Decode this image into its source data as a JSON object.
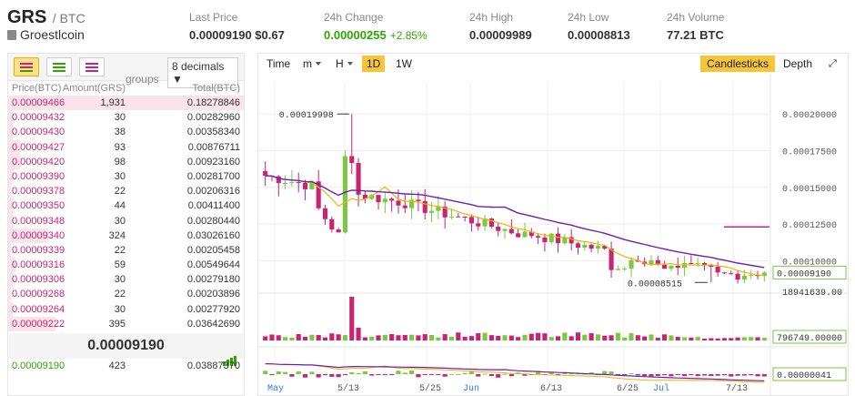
{
  "header": {
    "symbol": "GRS",
    "quote": "/ BTC",
    "coin_name": "Groestlcoin",
    "stats": [
      {
        "label": "Last Price",
        "value": "0.00009190 $0.67"
      },
      {
        "label": "24h Change",
        "value": "0.00000255",
        "pct": "+2.85%"
      },
      {
        "label": "24h High",
        "value": "0.00009989"
      },
      {
        "label": "24h Low",
        "value": "0.00008813"
      },
      {
        "label": "24h Volume",
        "value": "77.21 BTC"
      }
    ]
  },
  "orderbook": {
    "groups_label": "groups",
    "decimals": "8 decimals ▼",
    "columns": {
      "price": "Price(BTC)",
      "amount": "Amount(GRS)",
      "total": "Total(BTC)"
    },
    "asks": [
      {
        "price": "0.00009466",
        "amount": "1,931",
        "total": "0.18278846",
        "depth": 1.0
      },
      {
        "price": "0.00009432",
        "amount": "30",
        "total": "0.00282960",
        "depth": 0.02
      },
      {
        "price": "0.00009430",
        "amount": "38",
        "total": "0.00358340",
        "depth": 0.02
      },
      {
        "price": "0.00009427",
        "amount": "93",
        "total": "0.00876711",
        "depth": 0.05
      },
      {
        "price": "0.00009420",
        "amount": "98",
        "total": "0.00923160",
        "depth": 0.05
      },
      {
        "price": "0.00009390",
        "amount": "30",
        "total": "0.00281700",
        "depth": 0.02
      },
      {
        "price": "0.00009378",
        "amount": "22",
        "total": "0.00206316",
        "depth": 0.01
      },
      {
        "price": "0.00009350",
        "amount": "44",
        "total": "0.00411400",
        "depth": 0.02
      },
      {
        "price": "0.00009348",
        "amount": "30",
        "total": "0.00280440",
        "depth": 0.02
      },
      {
        "price": "0.00009340",
        "amount": "324",
        "total": "0.03026160",
        "depth": 0.17
      },
      {
        "price": "0.00009339",
        "amount": "22",
        "total": "0.00205458",
        "depth": 0.01
      },
      {
        "price": "0.00009316",
        "amount": "59",
        "total": "0.00549644",
        "depth": 0.03
      },
      {
        "price": "0.00009306",
        "amount": "30",
        "total": "0.00279180",
        "depth": 0.02
      },
      {
        "price": "0.00009268",
        "amount": "22",
        "total": "0.00203896",
        "depth": 0.01
      },
      {
        "price": "0.00009264",
        "amount": "30",
        "total": "0.00277920",
        "depth": 0.02
      },
      {
        "price": "0.00009222",
        "amount": "395",
        "total": "0.03642690",
        "depth": 0.2
      }
    ],
    "last_price": "0.00009190",
    "bids": [
      {
        "price": "0.00009190",
        "amount": "423",
        "total": "0.03887370"
      }
    ]
  },
  "chart_toolbar": {
    "time": "Time",
    "minutes": "m",
    "hours": "H",
    "day": "1D",
    "week": "1W",
    "candlesticks": "Candlesticks",
    "depth": "Depth"
  },
  "chart_data": {
    "type": "candlestick",
    "y_ticks": [
      "0.00020000",
      "0.00017500",
      "0.00015000",
      "0.00012500",
      "0.00010000"
    ],
    "ylim": [
      7.85e-05,
      0.000215
    ],
    "x_labels": [
      "May",
      "5/13",
      "5/25",
      "Jun",
      "6/13",
      "6/25",
      "Jul",
      "7/13"
    ],
    "annotations": {
      "high": "0.00019998",
      "low": "0.00008515"
    },
    "current_price": "0.00009190",
    "volume_label": "18941639.00",
    "volume_current": "796749.00000",
    "macd_current": "0.00000041",
    "colors": {
      "up": "#7ac943",
      "down": "#c9246f",
      "ma_fast": "#f0b400",
      "ma_slow": "#6a1fb5",
      "accent": "#f7c53a"
    }
  }
}
